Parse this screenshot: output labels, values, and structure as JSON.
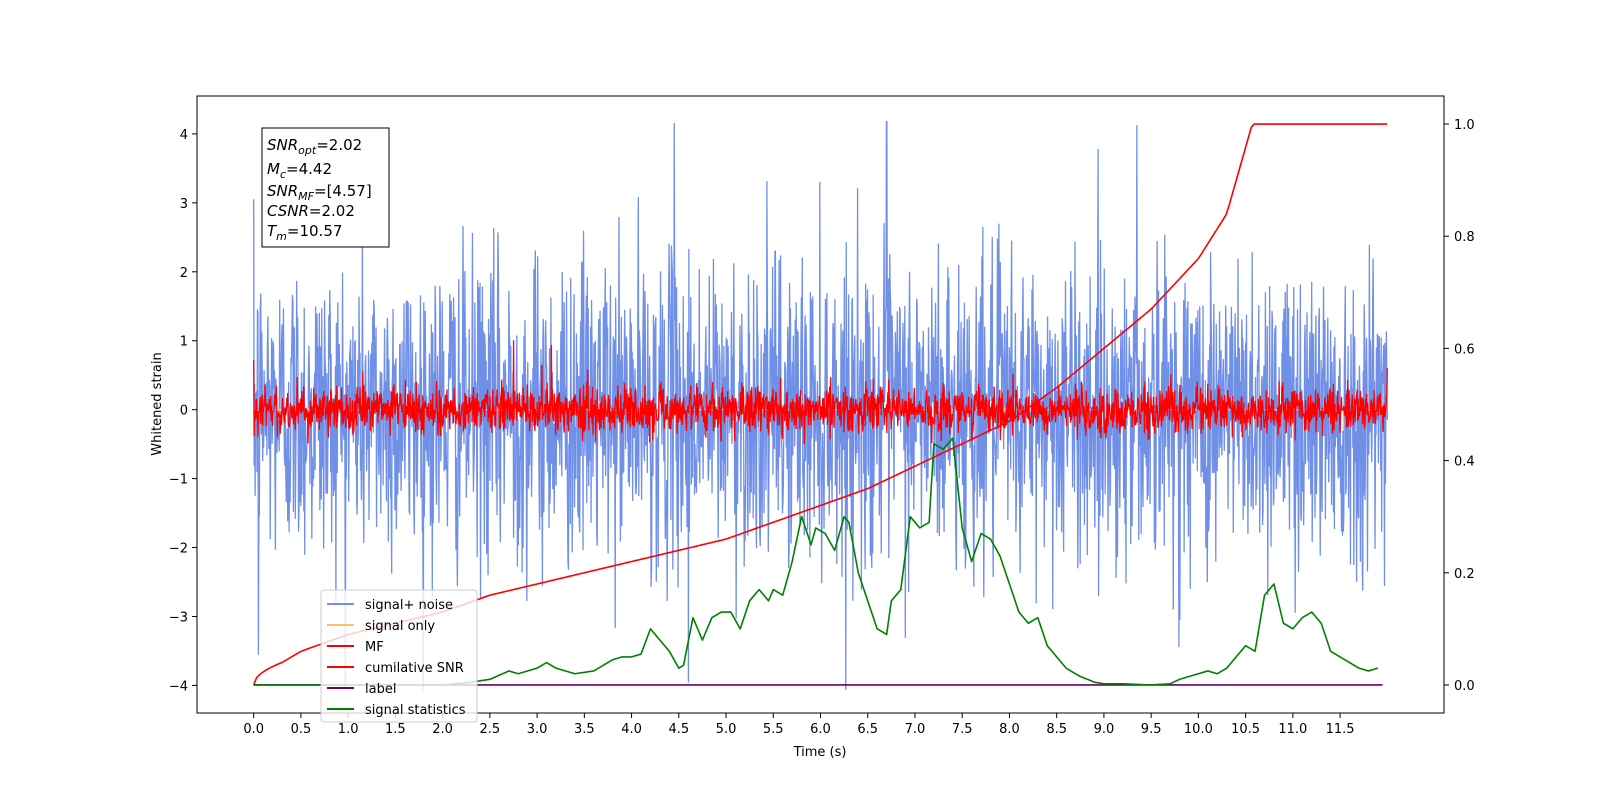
{
  "chart_data": {
    "type": "line",
    "title": "",
    "xlabel": "Time (s)",
    "ylabel": "Whitened strain",
    "xlim": [
      -0.6,
      12.6
    ],
    "ylim": [
      -4.4,
      4.55
    ],
    "ylim_right": [
      -0.05,
      1.05
    ],
    "x_ticks": [
      "0.0",
      "0.5",
      "1.0",
      "1.5",
      "2.0",
      "2.5",
      "3.0",
      "3.5",
      "4.0",
      "4.5",
      "5.0",
      "5.5",
      "6.0",
      "6.5",
      "7.0",
      "7.5",
      "8.0",
      "8.5",
      "9.0",
      "9.5",
      "10.0",
      "10.5",
      "11.0",
      "11.5"
    ],
    "y_ticks": [
      "4",
      "3",
      "2",
      "1",
      "0",
      "−1",
      "−2",
      "−3",
      "−4"
    ],
    "y_ticks_right": [
      "1.0",
      "0.8",
      "0.6",
      "0.4",
      "0.2",
      "0.0"
    ],
    "grid": false,
    "legend_position": "lower-left",
    "legend": [
      {
        "label": "signal+ noise",
        "color": "#7090e8"
      },
      {
        "label": "signal only",
        "color": "#ffc060"
      },
      {
        "label": "MF",
        "color": "#ff0000"
      },
      {
        "label": "cumilative SNR",
        "color": "#ff0000"
      },
      {
        "label": "label",
        "color": "#6a006a"
      },
      {
        "label": "signal statistics",
        "color": "#008000"
      }
    ],
    "info_box": {
      "line1": {
        "base": "SNR",
        "sub": "opt",
        "rest": "=2.02"
      },
      "line2": {
        "base": "M",
        "sub": "c",
        "rest": "=4.42"
      },
      "line3": {
        "base": "SNR",
        "sub": "MF",
        "rest": "=[4.57]"
      },
      "line4": {
        "base": "CSNR",
        "sub": "",
        "rest": "=2.02"
      },
      "line5": {
        "base": "T",
        "sub": "m",
        "rest": "=10.57"
      }
    },
    "series": [
      {
        "name": "signal+ noise",
        "axis": "left",
        "color": "#7090e8",
        "x_range": [
          0.0,
          12.0
        ],
        "amplitude_std": 1.1,
        "notable_peaks": [
          [
            4.45,
            4.15
          ],
          [
            6.7,
            4.18
          ],
          [
            9.35,
            4.12
          ],
          [
            4.6,
            -3.95
          ],
          [
            0.05,
            -3.55
          ]
        ]
      },
      {
        "name": "signal only",
        "axis": "left",
        "color": "#ffc060",
        "x_range": [
          0.0,
          12.0
        ],
        "values": "flat at 0 (hidden under MF)"
      },
      {
        "name": "MF",
        "axis": "left",
        "color": "#ff0000",
        "x_range": [
          0.0,
          12.0
        ],
        "amplitude_std": 0.17,
        "notable_peaks": [
          [
            2.75,
            1.0
          ],
          [
            3.15,
            0.93
          ],
          [
            0.0,
            0.72
          ],
          [
            12.0,
            0.6
          ]
        ]
      },
      {
        "name": "cumilative SNR",
        "axis": "right",
        "color": "#ff0000",
        "x": [
          0,
          0.1,
          0.3,
          0.5,
          1.0,
          1.5,
          2.0,
          2.5,
          3.0,
          3.5,
          4.0,
          4.5,
          5.0,
          5.5,
          6.0,
          6.5,
          7.0,
          7.5,
          8.0,
          8.5,
          9.0,
          9.5,
          10.0,
          10.3,
          10.57,
          12.0
        ],
        "y": [
          0.0,
          0.02,
          0.04,
          0.06,
          0.09,
          0.11,
          0.13,
          0.16,
          0.18,
          0.2,
          0.22,
          0.24,
          0.26,
          0.29,
          0.32,
          0.35,
          0.39,
          0.43,
          0.47,
          0.53,
          0.6,
          0.67,
          0.76,
          0.84,
          1.0,
          1.0
        ]
      },
      {
        "name": "label",
        "axis": "right",
        "color": "#6a006a",
        "x": [
          0.0,
          11.95
        ],
        "y": [
          0.0,
          0.0
        ]
      },
      {
        "name": "signal statistics",
        "axis": "right",
        "color": "#008000",
        "x": [
          0,
          1.0,
          2.0,
          2.3,
          2.5,
          2.7,
          2.8,
          3.0,
          3.1,
          3.2,
          3.4,
          3.6,
          3.7,
          3.8,
          3.9,
          4.0,
          4.1,
          4.2,
          4.3,
          4.4,
          4.5,
          4.55,
          4.65,
          4.75,
          4.85,
          4.95,
          5.05,
          5.15,
          5.25,
          5.35,
          5.45,
          5.5,
          5.6,
          5.7,
          5.8,
          5.9,
          5.95,
          6.05,
          6.15,
          6.25,
          6.3,
          6.4,
          6.5,
          6.6,
          6.7,
          6.75,
          6.85,
          6.95,
          7.05,
          7.15,
          7.2,
          7.3,
          7.4,
          7.5,
          7.6,
          7.7,
          7.8,
          7.9,
          8.0,
          8.1,
          8.2,
          8.3,
          8.4,
          8.5,
          8.6,
          8.75,
          8.9,
          9.0,
          9.2,
          9.5,
          9.7,
          9.8,
          9.9,
          10.0,
          10.1,
          10.2,
          10.3,
          10.4,
          10.5,
          10.6,
          10.7,
          10.8,
          10.9,
          11.0,
          11.1,
          11.2,
          11.3,
          11.4,
          11.5,
          11.6,
          11.7,
          11.8,
          11.9
        ],
        "y": [
          0.0,
          0.0,
          0.0,
          0.005,
          0.01,
          0.025,
          0.02,
          0.03,
          0.04,
          0.03,
          0.02,
          0.025,
          0.035,
          0.045,
          0.05,
          0.05,
          0.055,
          0.1,
          0.08,
          0.06,
          0.03,
          0.035,
          0.12,
          0.08,
          0.12,
          0.13,
          0.13,
          0.1,
          0.15,
          0.17,
          0.15,
          0.17,
          0.16,
          0.22,
          0.3,
          0.25,
          0.28,
          0.27,
          0.24,
          0.3,
          0.29,
          0.2,
          0.15,
          0.1,
          0.09,
          0.15,
          0.17,
          0.3,
          0.28,
          0.29,
          0.43,
          0.42,
          0.44,
          0.28,
          0.22,
          0.27,
          0.26,
          0.23,
          0.18,
          0.13,
          0.11,
          0.12,
          0.07,
          0.05,
          0.03,
          0.015,
          0.005,
          0.002,
          0.002,
          0.0,
          0.002,
          0.01,
          0.015,
          0.02,
          0.025,
          0.02,
          0.03,
          0.05,
          0.07,
          0.06,
          0.16,
          0.18,
          0.11,
          0.1,
          0.12,
          0.13,
          0.11,
          0.06,
          0.05,
          0.04,
          0.03,
          0.025,
          0.03
        ]
      }
    ]
  }
}
